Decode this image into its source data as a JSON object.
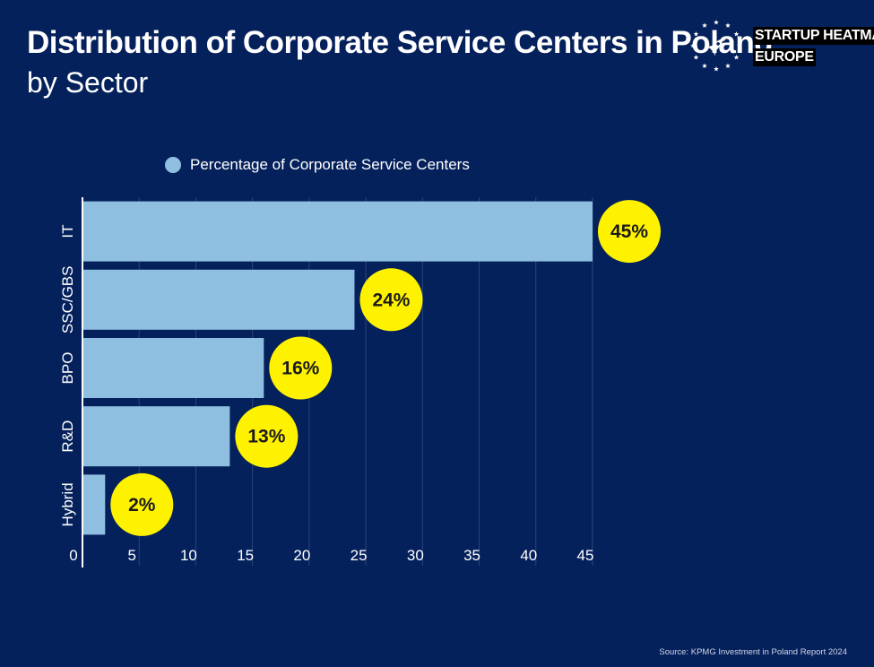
{
  "header": {
    "title": "Distribution of Corporate Service Centers in Poland",
    "subtitle": "by Sector"
  },
  "logo": {
    "line1": "STARTUP HEATMAP",
    "line2": "EUROPE",
    "icon": "rocket-icon"
  },
  "legend": {
    "label": "Percentage of Corporate Service Centers",
    "color": "#8fbfe0"
  },
  "source": "Source: KPMG Investment in Poland Report 2024",
  "colors": {
    "background": "#05215c",
    "bar": "#8fbfe0",
    "badge": "#fff200",
    "badge_text": "#1a1a1a",
    "grid": "#2a4478"
  },
  "chart_data": {
    "type": "bar",
    "orientation": "horizontal",
    "categories": [
      "IT",
      "SSC/GBS",
      "BPO",
      "R&D",
      "Hybrid"
    ],
    "series": [
      {
        "name": "Percentage of Corporate Service Centers",
        "values": [
          45,
          24,
          16,
          13,
          2
        ]
      }
    ],
    "data_labels": [
      "45%",
      "24%",
      "16%",
      "13%",
      "2%"
    ],
    "xlim": [
      0,
      45
    ],
    "xticks": [
      0,
      5,
      10,
      15,
      20,
      25,
      30,
      35,
      40,
      45
    ],
    "grid": true,
    "legend_position": "top"
  }
}
